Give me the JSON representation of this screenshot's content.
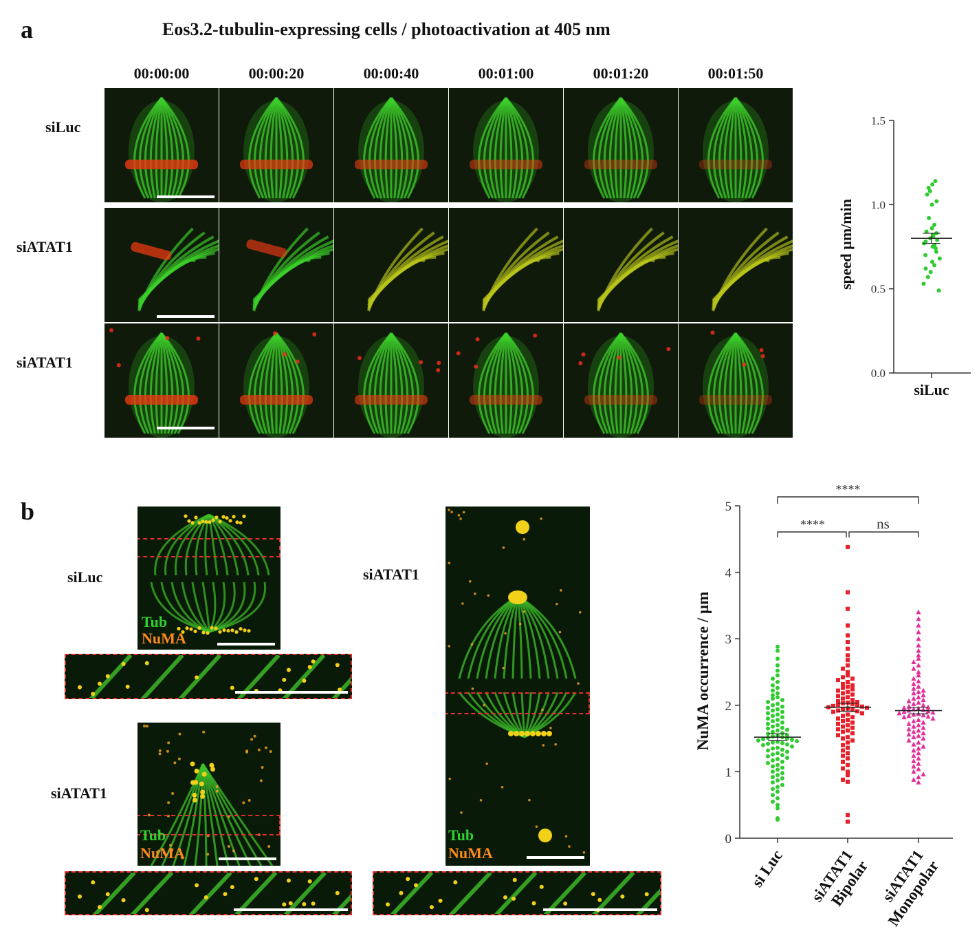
{
  "panel_a": {
    "letter": "a",
    "title": "Eos3.2-tubulin-expressing cells / photoactivation at 405 nm",
    "timepoints": [
      "00:00:00",
      "00:00:20",
      "00:00:40",
      "00:01:00",
      "00:01:20",
      "00:01:50"
    ],
    "rows": [
      {
        "label": "siLuc",
        "morphology": "bipolar",
        "photo_band": "middle"
      },
      {
        "label": "siATAT1",
        "morphology": "fan",
        "photo_band": "top"
      },
      {
        "label": "siATAT1",
        "morphology": "bipolar",
        "photo_band": "middle"
      }
    ],
    "colors": {
      "tubulin": "#3ccf2a",
      "photoconverted": "#e83a12",
      "background": "#0f1a0a"
    }
  },
  "panel_b": {
    "letter": "b",
    "micrographs": [
      {
        "label": "siLuc",
        "channels": [
          "Tub",
          "NuMA"
        ]
      },
      {
        "label": "siATAT1",
        "channels": [
          "Tub",
          "NuMA"
        ]
      },
      {
        "label": "siATAT1",
        "channels": [
          "Tub",
          "NuMA"
        ]
      }
    ],
    "colors": {
      "tub": "#2fd12f",
      "numa": "#ff8a1c",
      "roi": "#e0302a"
    }
  },
  "chart_data": [
    {
      "type": "scatter",
      "title": "",
      "ylabel": "speed µm/min",
      "xlabel": "",
      "categories": [
        "siLuc"
      ],
      "ylim": [
        0,
        1.5
      ],
      "yticks": [
        0.0,
        0.5,
        1.0,
        1.5
      ],
      "ytick_labels": [
        "0.0",
        "0.5",
        "1.0",
        "1.5"
      ],
      "series": [
        {
          "category": "siLuc",
          "color": "#2ecc2e",
          "marker": "circle",
          "values": [
            1.14,
            1.12,
            1.1,
            1.08,
            1.06,
            1.02,
            1.0,
            0.92,
            0.88,
            0.86,
            0.84,
            0.83,
            0.82,
            0.81,
            0.8,
            0.79,
            0.78,
            0.77,
            0.76,
            0.75,
            0.74,
            0.72,
            0.7,
            0.68,
            0.66,
            0.64,
            0.62,
            0.6,
            0.57,
            0.53,
            0.49
          ],
          "mean": 0.8,
          "sem": 0.03
        }
      ]
    },
    {
      "type": "scatter",
      "title": "",
      "ylabel": "NuMA occurrence / µm",
      "xlabel": "",
      "categories": [
        "si Luc",
        "siATAT1 Bipolar",
        "siATAT1 Monopolar"
      ],
      "category_lines": [
        [
          "si Luc"
        ],
        [
          "siATAT1",
          "Bipolar"
        ],
        [
          "siATAT1",
          "Monopolar"
        ]
      ],
      "ylim": [
        0,
        5
      ],
      "yticks": [
        0,
        1,
        2,
        3,
        4,
        5
      ],
      "ytick_labels": [
        "0",
        "1",
        "2",
        "3",
        "4",
        "5"
      ],
      "series": [
        {
          "category": "si Luc",
          "color": "#2ecc2e",
          "marker": "circle",
          "mean": 1.52,
          "sem": 0.05,
          "values": [
            2.88,
            2.82,
            2.7,
            2.6,
            2.52,
            2.45,
            2.4,
            2.35,
            2.3,
            2.26,
            2.22,
            2.18,
            2.15,
            2.12,
            2.1,
            2.08,
            2.05,
            2.02,
            2.0,
            1.98,
            1.96,
            1.94,
            1.92,
            1.9,
            1.88,
            1.86,
            1.84,
            1.82,
            1.8,
            1.78,
            1.76,
            1.74,
            1.72,
            1.7,
            1.68,
            1.66,
            1.65,
            1.63,
            1.62,
            1.6,
            1.58,
            1.57,
            1.55,
            1.54,
            1.53,
            1.52,
            1.51,
            1.5,
            1.49,
            1.48,
            1.47,
            1.46,
            1.45,
            1.44,
            1.43,
            1.42,
            1.41,
            1.4,
            1.38,
            1.36,
            1.35,
            1.33,
            1.32,
            1.3,
            1.28,
            1.26,
            1.25,
            1.23,
            1.21,
            1.19,
            1.17,
            1.15,
            1.13,
            1.1,
            1.08,
            1.06,
            1.03,
            1.0,
            0.98,
            0.95,
            0.92,
            0.9,
            0.87,
            0.84,
            0.8,
            0.77,
            0.74,
            0.7,
            0.65,
            0.6,
            0.55,
            0.5,
            0.45,
            0.3,
            0.28
          ]
        },
        {
          "category": "siATAT1 Bipolar",
          "color": "#e8202a",
          "marker": "square",
          "mean": 1.97,
          "sem": 0.06,
          "values": [
            4.38,
            3.7,
            3.45,
            3.2,
            3.05,
            2.95,
            2.85,
            2.75,
            2.68,
            2.6,
            2.55,
            2.5,
            2.45,
            2.42,
            2.4,
            2.38,
            2.35,
            2.32,
            2.3,
            2.28,
            2.26,
            2.24,
            2.22,
            2.2,
            2.18,
            2.16,
            2.14,
            2.12,
            2.1,
            2.08,
            2.06,
            2.05,
            2.04,
            2.03,
            2.02,
            2.01,
            2.0,
            1.99,
            1.98,
            1.97,
            1.96,
            1.95,
            1.94,
            1.93,
            1.92,
            1.91,
            1.9,
            1.88,
            1.86,
            1.84,
            1.82,
            1.8,
            1.78,
            1.76,
            1.74,
            1.72,
            1.7,
            1.68,
            1.66,
            1.64,
            1.62,
            1.6,
            1.58,
            1.55,
            1.52,
            1.5,
            1.47,
            1.44,
            1.4,
            1.36,
            1.32,
            1.28,
            1.24,
            1.2,
            1.15,
            1.1,
            1.05,
            1.0,
            0.95,
            0.88,
            0.85,
            0.35,
            0.25
          ]
        },
        {
          "category": "siATAT1 Monopolar",
          "color": "#e0309a",
          "marker": "triangle",
          "mean": 1.92,
          "sem": 0.05,
          "values": [
            3.4,
            3.3,
            3.2,
            3.1,
            3.0,
            2.9,
            2.82,
            2.75,
            2.7,
            2.65,
            2.6,
            2.55,
            2.5,
            2.45,
            2.4,
            2.36,
            2.32,
            2.28,
            2.25,
            2.22,
            2.2,
            2.18,
            2.15,
            2.12,
            2.1,
            2.08,
            2.06,
            2.04,
            2.02,
            2.0,
            1.98,
            1.97,
            1.96,
            1.95,
            1.94,
            1.93,
            1.92,
            1.91,
            1.9,
            1.89,
            1.88,
            1.87,
            1.86,
            1.85,
            1.84,
            1.83,
            1.82,
            1.8,
            1.78,
            1.76,
            1.74,
            1.72,
            1.7,
            1.68,
            1.66,
            1.64,
            1.62,
            1.6,
            1.58,
            1.56,
            1.54,
            1.52,
            1.5,
            1.47,
            1.44,
            1.41,
            1.38,
            1.35,
            1.32,
            1.28,
            1.24,
            1.2,
            1.16,
            1.12,
            1.08,
            1.04,
            1.0,
            0.96,
            0.92,
            0.88,
            0.84
          ]
        }
      ],
      "significance": [
        {
          "from": "si Luc",
          "to": "siATAT1 Monopolar",
          "label": "****"
        },
        {
          "from": "si Luc",
          "to": "siATAT1 Bipolar",
          "label": "****"
        },
        {
          "from": "siATAT1 Bipolar",
          "to": "siATAT1 Monopolar",
          "label": "ns"
        }
      ]
    }
  ]
}
